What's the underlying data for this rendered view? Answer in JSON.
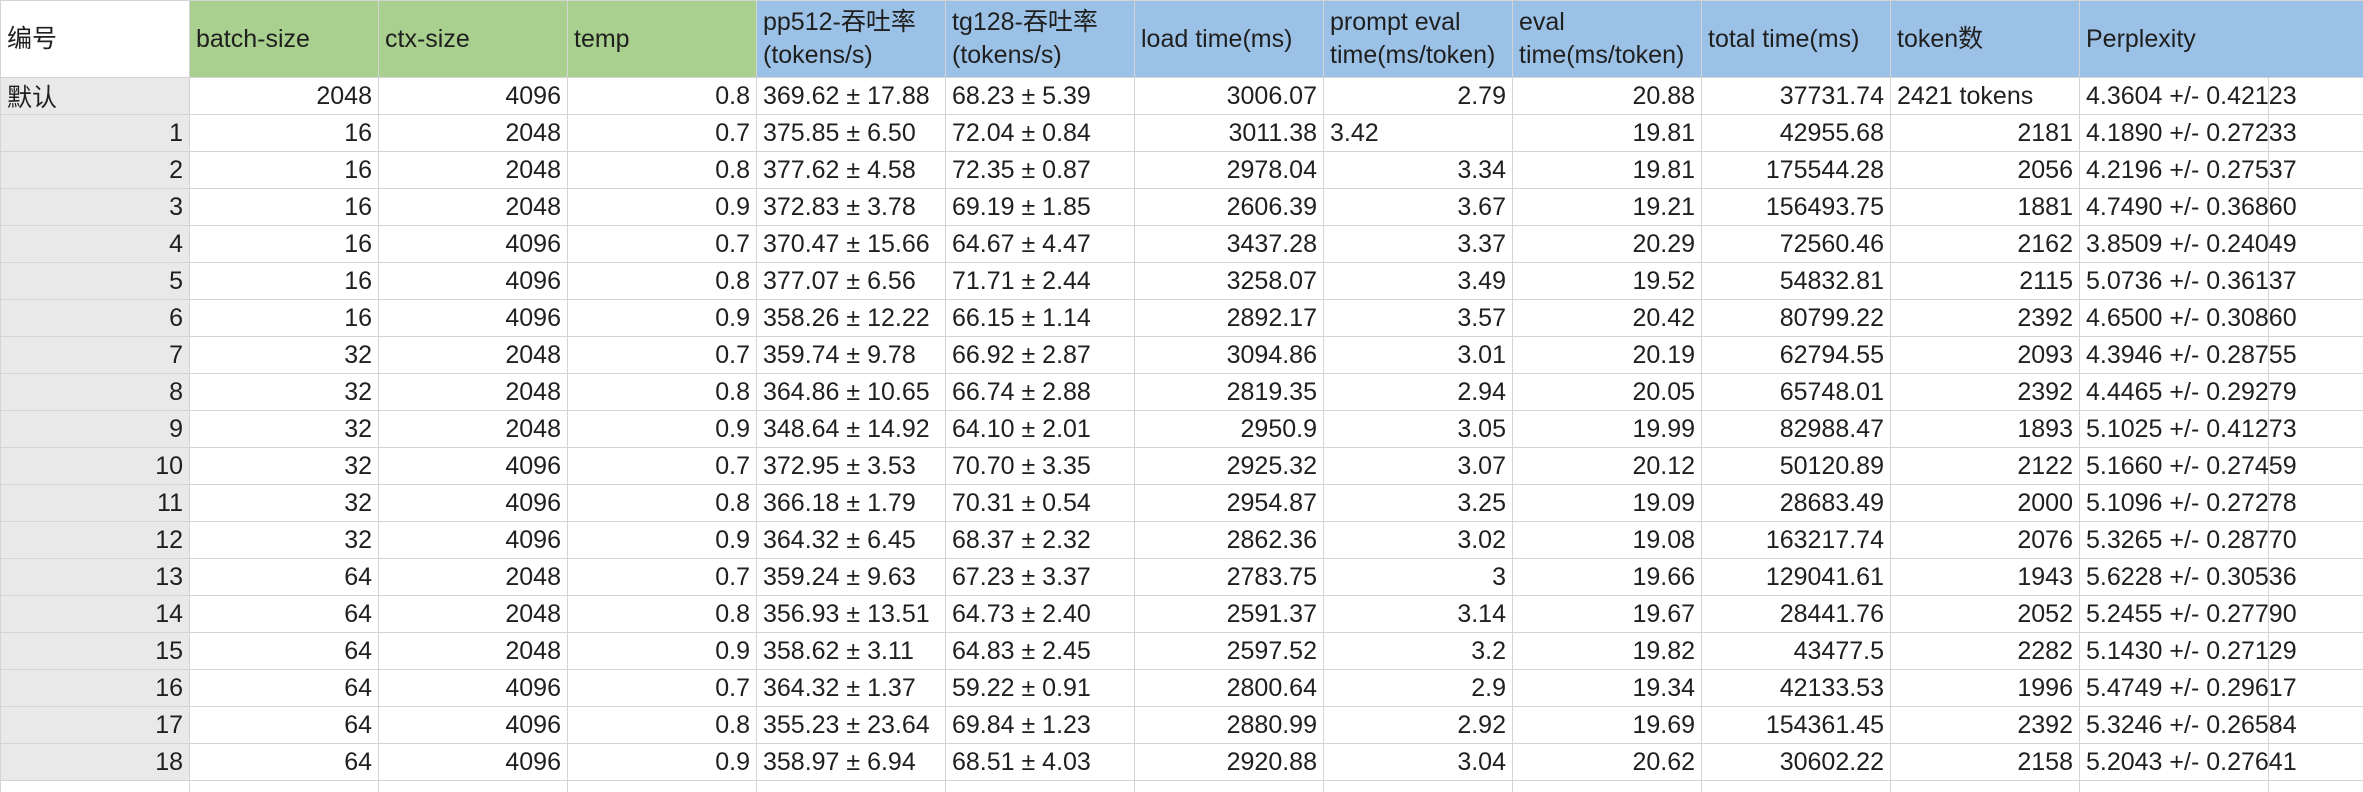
{
  "headers": [
    "编号",
    "batch-size",
    "ctx-size",
    "temp",
    "pp512-吞吐率\n(tokens/s)",
    "tg128-吞吐率\n(tokens/s)",
    "load time(ms)",
    "prompt eval\ntime(ms/token)",
    "eval\ntime(ms/token)",
    "total time(ms)",
    "token数",
    "Perplexity"
  ],
  "rows": [
    [
      "默认",
      "2048",
      "4096",
      "0.8",
      "369.62 ± 17.88",
      "68.23 ± 5.39",
      "3006.07",
      "2.79",
      "20.88",
      "37731.74",
      "2421 tokens",
      "4.3604 +/- 0.42123"
    ],
    [
      "1",
      "16",
      "2048",
      "0.7",
      "375.85 ± 6.50",
      "72.04 ± 0.84",
      "3011.38",
      "3.42",
      "19.81",
      "42955.68",
      "2181",
      "4.1890 +/- 0.27233"
    ],
    [
      "2",
      "16",
      "2048",
      "0.8",
      "377.62 ± 4.58",
      "72.35 ± 0.87",
      "2978.04",
      "3.34",
      "19.81",
      "175544.28",
      "2056",
      "4.2196 +/- 0.27537"
    ],
    [
      "3",
      "16",
      "2048",
      "0.9",
      "372.83 ± 3.78",
      "69.19 ± 1.85",
      "2606.39",
      "3.67",
      "19.21",
      "156493.75",
      "1881",
      "4.7490 +/- 0.36860"
    ],
    [
      "4",
      "16",
      "4096",
      "0.7",
      "370.47 ± 15.66",
      "64.67 ± 4.47",
      "3437.28",
      "3.37",
      "20.29",
      "72560.46",
      "2162",
      "3.8509 +/- 0.24049"
    ],
    [
      "5",
      "16",
      "4096",
      "0.8",
      "377.07 ± 6.56",
      "71.71 ± 2.44",
      "3258.07",
      "3.49",
      "19.52",
      "54832.81",
      "2115",
      "5.0736 +/- 0.36137"
    ],
    [
      "6",
      "16",
      "4096",
      "0.9",
      "358.26 ± 12.22",
      "66.15 ± 1.14",
      "2892.17",
      "3.57",
      "20.42",
      "80799.22",
      "2392",
      "4.6500 +/- 0.30860"
    ],
    [
      "7",
      "32",
      "2048",
      "0.7",
      "359.74 ± 9.78",
      "66.92 ± 2.87",
      "3094.86",
      "3.01",
      "20.19",
      "62794.55",
      "2093",
      "4.3946 +/- 0.28755"
    ],
    [
      "8",
      "32",
      "2048",
      "0.8",
      "364.86 ± 10.65",
      "66.74 ± 2.88",
      "2819.35",
      "2.94",
      "20.05",
      "65748.01",
      "2392",
      "4.4465 +/- 0.29279"
    ],
    [
      "9",
      "32",
      "2048",
      "0.9",
      "348.64 ± 14.92",
      "64.10 ± 2.01",
      "2950.9",
      "3.05",
      "19.99",
      "82988.47",
      "1893",
      "5.1025 +/- 0.41273"
    ],
    [
      "10",
      "32",
      "4096",
      "0.7",
      "372.95 ± 3.53",
      "70.70 ± 3.35",
      "2925.32",
      "3.07",
      "20.12",
      "50120.89",
      "2122",
      "5.1660 +/- 0.27459"
    ],
    [
      "11",
      "32",
      "4096",
      "0.8",
      "366.18 ± 1.79",
      "70.31 ± 0.54",
      "2954.87",
      "3.25",
      "19.09",
      "28683.49",
      "2000",
      "5.1096 +/- 0.27278"
    ],
    [
      "12",
      "32",
      "4096",
      "0.9",
      "364.32 ± 6.45",
      "68.37 ± 2.32",
      "2862.36",
      "3.02",
      "19.08",
      "163217.74",
      "2076",
      "5.3265 +/- 0.28770"
    ],
    [
      "13",
      "64",
      "2048",
      "0.7",
      "359.24 ± 9.63",
      "67.23 ± 3.37",
      "2783.75",
      "3",
      "19.66",
      "129041.61",
      "1943",
      "5.6228 +/- 0.30536"
    ],
    [
      "14",
      "64",
      "2048",
      "0.8",
      "356.93 ± 13.51",
      "64.73 ± 2.40",
      "2591.37",
      "3.14",
      "19.67",
      "28441.76",
      "2052",
      "5.2455 +/- 0.27790"
    ],
    [
      "15",
      "64",
      "2048",
      "0.9",
      "358.62 ± 3.11",
      "64.83 ± 2.45",
      "2597.52",
      "3.2",
      "19.82",
      "43477.5",
      "2282",
      "5.1430 +/- 0.27129"
    ],
    [
      "16",
      "64",
      "4096",
      "0.7",
      "364.32 ± 1.37",
      "59.22 ± 0.91",
      "2800.64",
      "2.9",
      "19.34",
      "42133.53",
      "1996",
      "5.4749 +/- 0.29617"
    ],
    [
      "17",
      "64",
      "4096",
      "0.8",
      "355.23 ± 23.64",
      "69.84 ± 1.23",
      "2880.99",
      "2.92",
      "19.69",
      "154361.45",
      "2392",
      "5.3246 +/- 0.26584"
    ],
    [
      "18",
      "64",
      "4096",
      "0.9",
      "358.97 ± 6.94",
      "68.51 ± 4.03",
      "2920.88",
      "3.04",
      "20.62",
      "30602.22",
      "2158",
      "5.2043 +/- 0.27641"
    ]
  ],
  "colors": {
    "header_green": "#a9d08e",
    "header_blue": "#9bc2e6",
    "row_header_bg": "#e9e9e9",
    "gridline": "#d4d4d4"
  }
}
